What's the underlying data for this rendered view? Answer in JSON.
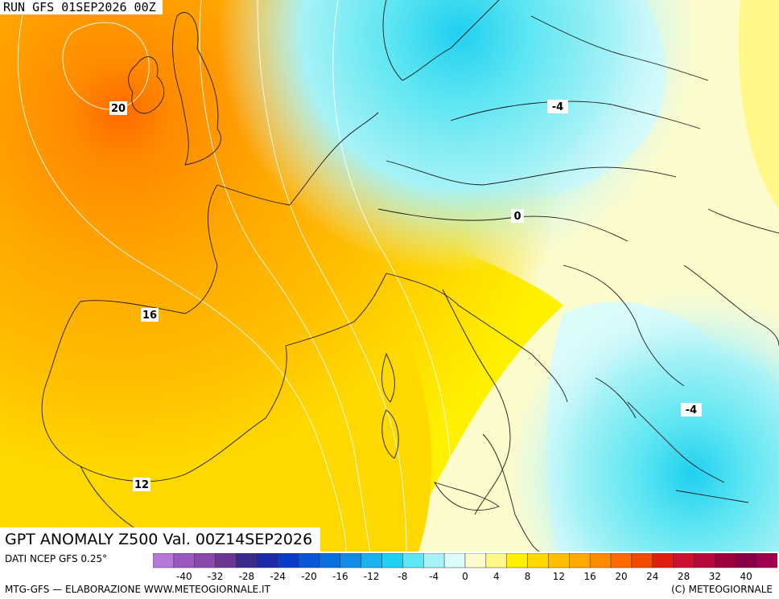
{
  "header": {
    "run_label": "RUN GFS 01SEP2026 00Z"
  },
  "footer": {
    "title": "GPT ANOMALY Z500 Val. 00Z14SEP2026",
    "data_source": "DATI NCEP GFS 0.25°",
    "credits": "MTG-GFS — ELABORAZIONE WWW.METEOGIORNALE.IT",
    "copyright": "(C) METEOGIORNALE"
  },
  "map": {
    "contour_labels": [
      {
        "value": "20"
      },
      {
        "value": "16"
      },
      {
        "value": "12"
      },
      {
        "value": "-4"
      },
      {
        "value": "0"
      },
      {
        "value": "-4"
      }
    ]
  },
  "colorbar": {
    "colors": [
      "#b678d6",
      "#9b59c0",
      "#8a49aa",
      "#6c3592",
      "#3a2a8a",
      "#1c2aa8",
      "#0b3cc8",
      "#0a55d8",
      "#0a70e0",
      "#128ee8",
      "#1ab2ee",
      "#20d0f0",
      "#5fe6f2",
      "#a6f2f6",
      "#dcfbfb",
      "#fbfbcc",
      "#fff888",
      "#fff000",
      "#ffd800",
      "#ffbf00",
      "#ffa800",
      "#ff8c00",
      "#ff6a00",
      "#f24a00",
      "#e01e10",
      "#cc1030",
      "#b80a3a",
      "#a00040",
      "#8a0048",
      "#a2004e"
    ],
    "tick_labels": [
      "-40",
      "-32",
      "-28",
      "-24",
      "-20",
      "-16",
      "-12",
      "-8",
      "-4",
      "0",
      "4",
      "8",
      "12",
      "16",
      "20",
      "24",
      "28",
      "32",
      "40"
    ]
  }
}
